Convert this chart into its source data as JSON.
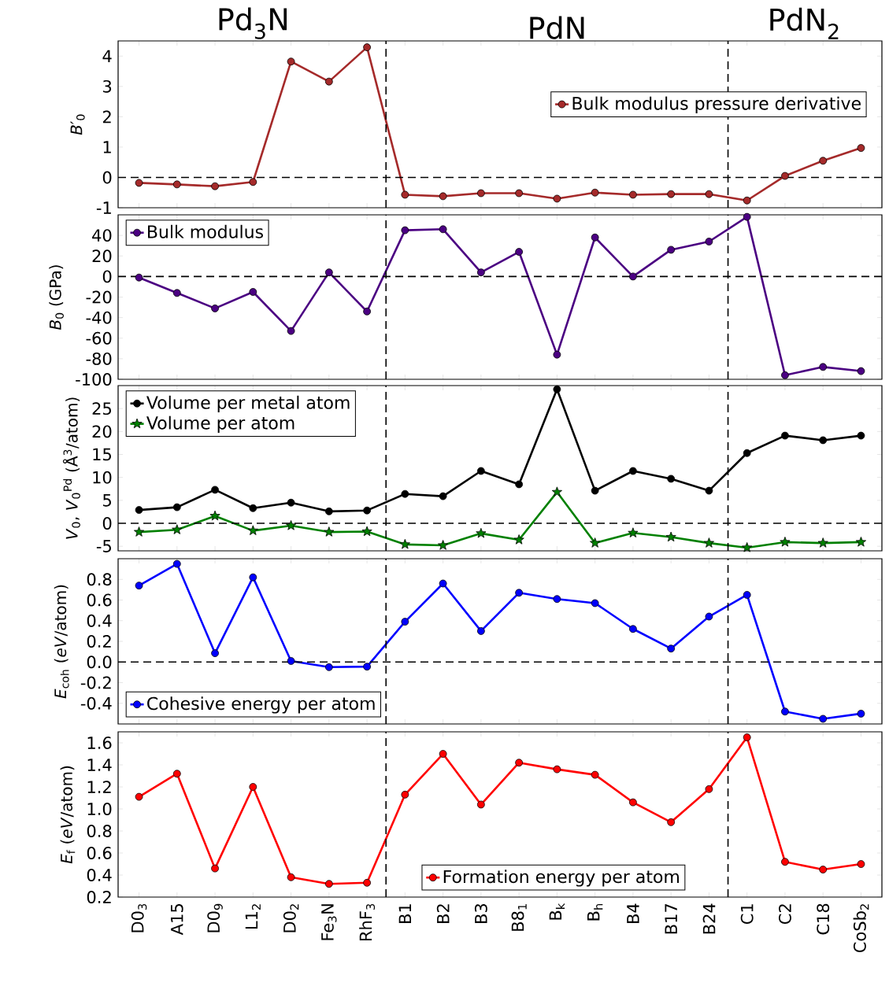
{
  "chart_data": [
    {
      "type": "line",
      "ylabel": "*B*′$_{0}$",
      "categories": [
        null,
        null,
        null,
        null,
        null,
        null,
        null,
        null,
        null,
        null,
        null,
        null,
        null,
        null,
        null,
        null,
        null,
        null,
        null,
        null
      ],
      "series": [
        {
          "name": "Bulk modulus pressure derivative",
          "color": "#a52a2a",
          "marker": "circle",
          "values": [
            -0.18,
            -0.23,
            -0.29,
            -0.15,
            3.82,
            3.16,
            4.29,
            -0.57,
            -0.62,
            -0.52,
            -0.52,
            -0.7,
            -0.5,
            -0.57,
            -0.55,
            -0.55,
            -0.76,
            0.05,
            0.55,
            0.97
          ]
        }
      ],
      "ylim": [
        -1,
        4.5
      ],
      "yticks": [
        -1,
        0,
        1,
        2,
        3,
        4
      ],
      "tick_labels": "y",
      "legend": "right",
      "line_style": "solid",
      "ref_lines": [
        {
          "axis": "y",
          "value": 0,
          "color": "#000000",
          "line_style": "dashed"
        }
      ],
      "annotations": [
        "Pd$_{3}$N",
        "PdN",
        "PdN$_{2}$"
      ]
    },
    {
      "type": "line",
      "ylabel": "*B*$_{0}$ (GPa)",
      "categories": [
        null,
        null,
        null,
        null,
        null,
        null,
        null,
        null,
        null,
        null,
        null,
        null,
        null,
        null,
        null,
        null,
        null,
        null,
        null,
        null
      ],
      "series": [
        {
          "name": "Bulk modulus",
          "color": "#4b0082",
          "marker": "circle",
          "values": [
            -1,
            -16,
            -31,
            -15,
            -53,
            4,
            -34,
            45,
            46,
            4,
            24,
            -76,
            38,
            0,
            26,
            34,
            58,
            -96,
            -88,
            -92
          ]
        }
      ],
      "ylim": [
        -100,
        60
      ],
      "yticks": [
        -100,
        -80,
        -60,
        -40,
        -20,
        0,
        20,
        40
      ],
      "tick_labels": "y",
      "legend": "top left",
      "line_style": "solid",
      "ref_lines": [
        {
          "axis": "y",
          "value": 0,
          "color": "#000000",
          "line_style": "dashed"
        }
      ]
    },
    {
      "type": "line",
      "ylabel": "*V*$_{0}$, *V*$_{0}$$^{Pd}$ (Å$^{3}$/atom)",
      "categories": [
        null,
        null,
        null,
        null,
        null,
        null,
        null,
        null,
        null,
        null,
        null,
        null,
        null,
        null,
        null,
        null,
        null,
        null,
        null,
        null
      ],
      "series": [
        {
          "name": "Volume per metal atom",
          "color": "#000000",
          "marker": "circle",
          "values": [
            2.9,
            3.5,
            7.3,
            3.3,
            4.5,
            2.6,
            2.8,
            6.4,
            5.9,
            11.4,
            8.5,
            29.2,
            7.1,
            11.4,
            9.7,
            7.1,
            15.3,
            19.1,
            18.1,
            19.1
          ]
        },
        {
          "name": "Volume per atom",
          "color": "#008000",
          "marker": "star",
          "values": [
            -1.9,
            -1.4,
            1.6,
            -1.6,
            -0.5,
            -1.9,
            -1.8,
            -4.6,
            -4.8,
            -2.2,
            -3.6,
            6.8,
            -4.3,
            -2.1,
            -3.0,
            -4.3,
            -5.3,
            -4.1,
            -4.3,
            -4.1
          ]
        }
      ],
      "ylim": [
        -6,
        30
      ],
      "yticks": [
        -5,
        0,
        5,
        10,
        15,
        20,
        25
      ],
      "tick_labels": "y",
      "legend": "top left",
      "line_style": "solid",
      "ref_lines": [
        {
          "axis": "y",
          "value": 0,
          "color": "#000000",
          "line_style": "dashed"
        }
      ]
    },
    {
      "type": "line",
      "ylabel": "*E*$_{coh}$ (*eV*/atom)",
      "categories": [
        null,
        null,
        null,
        null,
        null,
        null,
        null,
        null,
        null,
        null,
        null,
        null,
        null,
        null,
        null,
        null,
        null,
        null,
        null,
        null
      ],
      "series": [
        {
          "name": "Cohesive energy per atom",
          "color": "#0000ff",
          "marker": "circle",
          "values": [
            0.74,
            0.95,
            0.085,
            0.82,
            0.01,
            -0.05,
            -0.045,
            0.39,
            0.76,
            0.3,
            0.67,
            0.61,
            0.57,
            0.32,
            0.13,
            0.44,
            0.65,
            -0.48,
            -0.55,
            -0.5
          ]
        }
      ],
      "ylim": [
        -0.6,
        1.0
      ],
      "yticks": [
        -0.4,
        -0.2,
        {
          "value": 0,
          "label": "0.0"
        },
        0.2,
        0.4,
        0.6,
        0.8
      ],
      "tick_labels": "y",
      "legend": "bottom left",
      "line_style": "solid",
      "ref_lines": [
        {
          "axis": "y",
          "value": 0,
          "color": "#000000",
          "line_style": "dashed"
        }
      ]
    },
    {
      "type": "line",
      "ylabel": "*E*$_{f}$ (*eV*/atom)",
      "categories": [
        "D0$_{3}$",
        "A15",
        "D0$_{9}$",
        "L1$_{2}$",
        "D0$_{2}$",
        "Fe$_{3}$N",
        "RhF$_{3}$",
        "B1",
        "B2",
        "B3",
        "B8$_{1}$",
        "B$_{k}$",
        "B$_{h}$",
        "B4",
        "B17",
        "B24",
        "C1",
        "C2",
        "C18",
        "CoSb$_{2}$"
      ],
      "series": [
        {
          "name": "Formation energy per atom",
          "color": "#ff0000",
          "marker": "circle",
          "values": [
            1.11,
            1.32,
            0.46,
            1.2,
            0.38,
            0.32,
            0.33,
            1.13,
            1.5,
            1.04,
            1.42,
            1.36,
            1.31,
            1.06,
            0.88,
            1.18,
            1.65,
            0.52,
            0.45,
            0.5
          ]
        }
      ],
      "ylim": [
        0.2,
        1.7
      ],
      "yticks": [
        0.2,
        0.4,
        0.6,
        0.8,
        {
          "value": 1,
          "label": "1.0"
        },
        1.2,
        1.4,
        1.6
      ],
      "legend": "bottom",
      "line_style": "solid"
    }
  ]
}
